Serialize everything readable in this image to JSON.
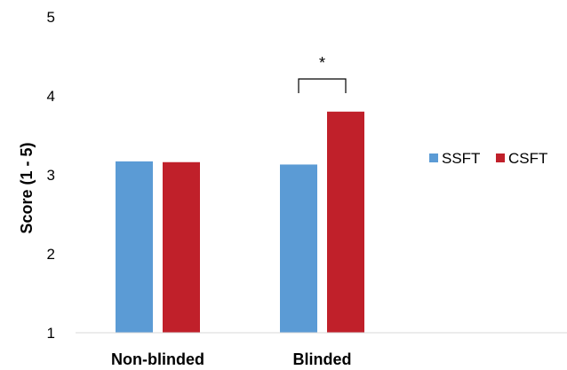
{
  "chart_data": {
    "type": "bar",
    "categories": [
      "Non-blinded",
      "Blinded"
    ],
    "series": [
      {
        "name": "SSFT",
        "values": [
          3.17,
          3.13
        ],
        "color": "#5b9bd5"
      },
      {
        "name": "CSFT",
        "values": [
          3.16,
          3.8
        ],
        "color": "#c0202a"
      }
    ],
    "ylabel": "Score (1 - 5)",
    "xlabel": "",
    "ylim": [
      1,
      5
    ],
    "yticks": [
      1,
      2,
      3,
      4,
      5
    ],
    "grid": false,
    "legend_position": "right",
    "annotations": [
      {
        "text": "*",
        "category": "Blinded",
        "type": "significance-bracket"
      }
    ]
  }
}
